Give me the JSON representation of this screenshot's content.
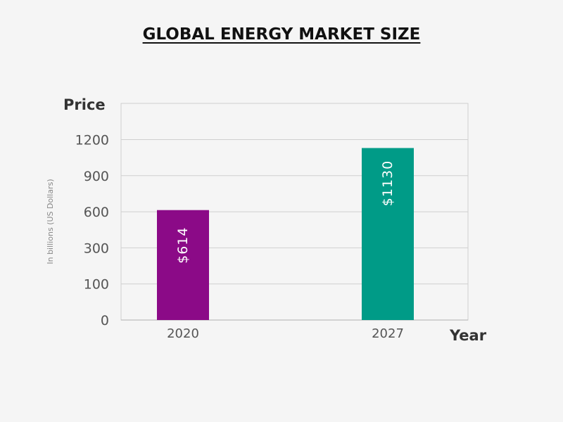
{
  "chart_data": {
    "type": "bar",
    "title": "GLOBAL ENERGY MARKET SIZE",
    "xlabel": "Year",
    "ylabel": "Price",
    "unit_label": "In billions (US Dollars)",
    "categories": [
      "2020",
      "2027"
    ],
    "values": [
      614,
      1130
    ],
    "data_labels": [
      "$614",
      "$1130"
    ],
    "bar_colors": [
      "#8b0a87",
      "#009b87"
    ],
    "y_ticks": [
      "0",
      "100",
      "300",
      "600",
      "900",
      "1200"
    ],
    "y_tick_values": [
      0,
      100,
      300,
      600,
      900,
      1200
    ],
    "grid": true
  }
}
